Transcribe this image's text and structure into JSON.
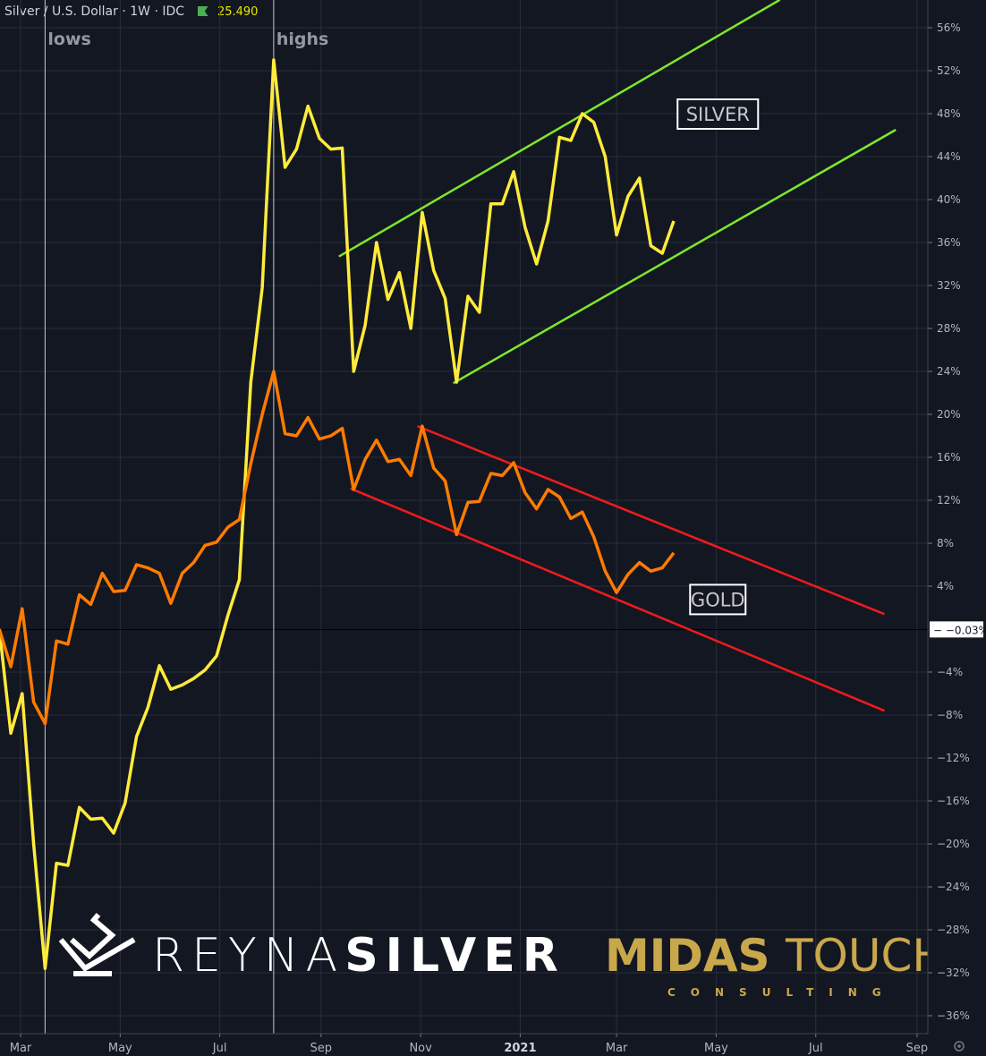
{
  "header": {
    "symbol": "Silver / U.S. Dollar",
    "interval": "1W",
    "source": "IDC",
    "price": "25.490",
    "flag_color": "#4caf50"
  },
  "chart_data": {
    "type": "line",
    "x_type": "date",
    "y_unit": "%",
    "y_range": [
      -38,
      58
    ],
    "y_ticks": [
      "56%",
      "52%",
      "48%",
      "44%",
      "40%",
      "36%",
      "32%",
      "28%",
      "24%",
      "20%",
      "16%",
      "12%",
      "8%",
      "4%",
      "-4%",
      "-8%",
      "-12%",
      "-16%",
      "-20%",
      "-24%",
      "-28%",
      "-32%",
      "-36%"
    ],
    "y_tick_values": [
      56,
      52,
      48,
      44,
      40,
      36,
      32,
      28,
      24,
      20,
      16,
      12,
      8,
      4,
      -4,
      -8,
      -12,
      -16,
      -20,
      -24,
      -28,
      -32,
      -36
    ],
    "x_ticks": [
      {
        "label": "Mar",
        "date": "2020-03-01"
      },
      {
        "label": "May",
        "date": "2020-05-01"
      },
      {
        "label": "Jul",
        "date": "2020-07-01"
      },
      {
        "label": "Sep",
        "date": "2020-09-01"
      },
      {
        "label": "Nov",
        "date": "2020-11-01"
      },
      {
        "label": "2021",
        "date": "2021-01-01",
        "bold": true
      },
      {
        "label": "Mar",
        "date": "2021-03-01"
      },
      {
        "label": "May",
        "date": "2021-05-01"
      },
      {
        "label": "Jul",
        "date": "2021-07-01"
      },
      {
        "label": "Sep",
        "date": "2021-09-01"
      }
    ],
    "grid": true,
    "first_week": "2020-02-17",
    "series": [
      {
        "key": "silver",
        "color": "#ffeb3b",
        "values": [
          0,
          -9.7,
          -6,
          -20,
          -31.6,
          -21.8,
          -22,
          -16.6,
          -17.7,
          -17.6,
          -19,
          -16.2,
          -10,
          -7.3,
          -3.4,
          -5.6,
          -5.2,
          -4.6,
          -3.8,
          -2.5,
          1.3,
          4.6,
          23,
          31.8,
          53,
          43,
          44.7,
          48.7,
          45.7,
          44.7,
          44.8,
          24,
          28.3,
          36,
          30.7,
          33.2,
          28,
          38.8,
          33.4,
          30.8,
          23,
          31,
          29.5,
          39.6,
          39.6,
          42.6,
          37.4,
          34,
          38,
          45.8,
          45.5,
          48,
          47.2,
          44,
          36.7,
          40.3,
          42,
          35.7,
          35,
          38
        ]
      },
      {
        "key": "gold",
        "color": "#ff7b00",
        "values": [
          0,
          -3.5,
          1.9,
          -6.8,
          -8.8,
          -1.1,
          -1.4,
          3.2,
          2.3,
          5.2,
          3.5,
          3.6,
          6,
          5.7,
          5.2,
          2.4,
          5.2,
          6.2,
          7.8,
          8.1,
          9.5,
          10.2,
          15.4,
          20,
          24,
          18.2,
          18,
          19.7,
          17.7,
          18,
          18.7,
          13,
          15.8,
          17.6,
          15.6,
          15.8,
          14.3,
          18.9,
          15,
          13.8,
          8.8,
          11.8,
          11.9,
          14.5,
          14.3,
          15.5,
          12.7,
          11.2,
          13,
          12.3,
          10.3,
          10.9,
          8.6,
          5.4,
          3.4,
          5.1,
          6.2,
          5.4,
          5.7,
          7.1
        ]
      }
    ],
    "trendlines": [
      {
        "name": "silver-channel-upper",
        "color": "#7fe82a",
        "from": [
          "2020-09-12",
          34.7
        ],
        "to": [
          "2021-06-09",
          58.6
        ]
      },
      {
        "name": "silver-channel-lower",
        "color": "#7fe82a",
        "from": [
          "2020-11-21",
          22.9
        ],
        "to": [
          "2021-08-19",
          46.5
        ]
      },
      {
        "name": "gold-channel-upper",
        "color": "#f21b1b",
        "from": [
          "2020-10-30",
          18.9
        ],
        "to": [
          "2021-08-12",
          1.4
        ]
      },
      {
        "name": "gold-channel-lower",
        "color": "#f21b1b",
        "from": [
          "2020-09-19",
          13.1
        ],
        "to": [
          "2021-08-12",
          -7.6
        ]
      }
    ],
    "vertical_markers": [
      {
        "label": "lows",
        "date": "2020-03-16"
      },
      {
        "label": "highs",
        "date": "2020-08-03"
      }
    ],
    "annotations": [
      {
        "label": "SILVER",
        "date": "2021-05-02",
        "value": 48
      },
      {
        "label": "GOLD",
        "date": "2021-05-02",
        "value": 2.8
      }
    ],
    "current_value_label": "-0.03%",
    "current_value": -0.03
  },
  "watermarks": {
    "left": "REYNASILVER",
    "right": "MIDAS TOUCH",
    "right_sub": "CONSULTING"
  },
  "axis_settings_icon": "gear-icon"
}
